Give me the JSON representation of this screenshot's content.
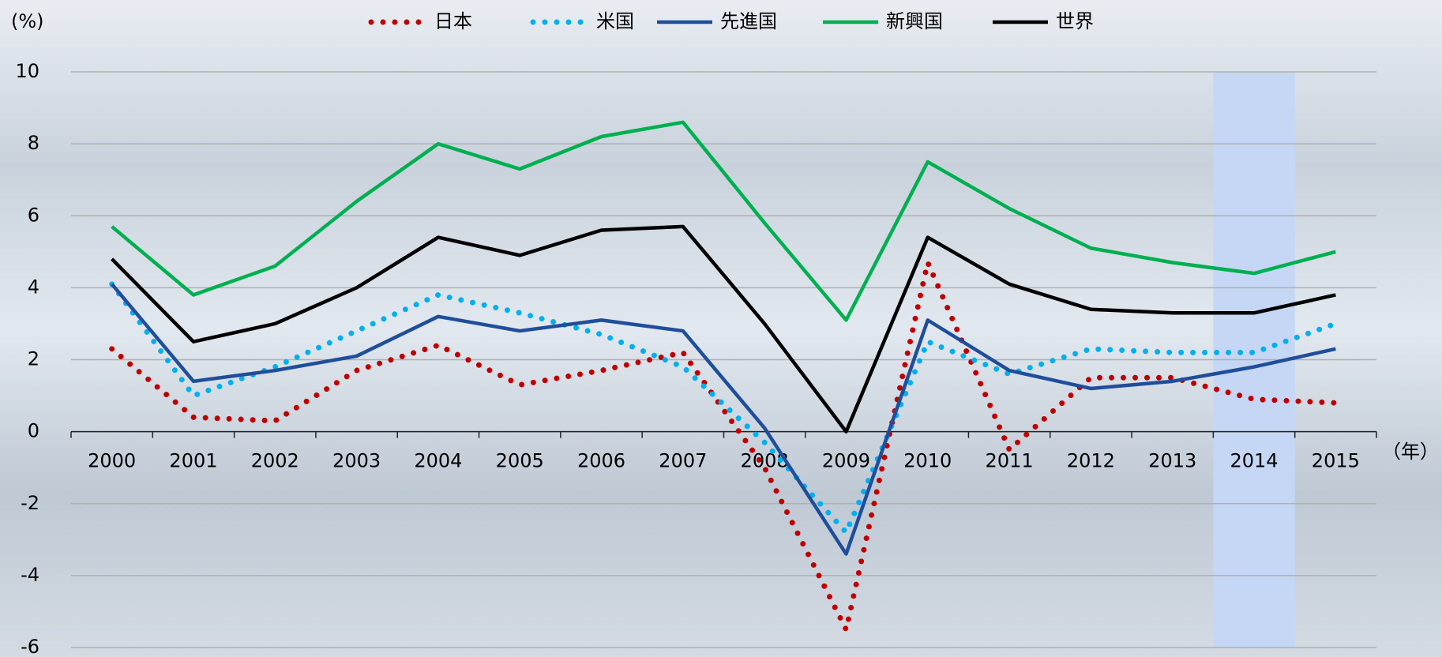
{
  "chart_data": {
    "type": "line",
    "y_label": "(%)",
    "x_label": "（年）",
    "categories": [
      "2000",
      "2001",
      "2002",
      "2003",
      "2004",
      "2005",
      "2006",
      "2007",
      "2008",
      "2009",
      "2010",
      "2011",
      "2012",
      "2013",
      "2014",
      "2015"
    ],
    "highlight": "2014",
    "series": [
      {
        "name": "日本",
        "color": "#c00000",
        "style": "dotted",
        "values": [
          2.3,
          0.4,
          0.3,
          1.7,
          2.4,
          1.3,
          1.7,
          2.2,
          -1.0,
          -5.5,
          4.7,
          -0.5,
          1.5,
          1.5,
          0.9,
          0.8
        ]
      },
      {
        "name": "米国",
        "color": "#00b0f0",
        "style": "dotted",
        "values": [
          4.1,
          1.0,
          1.8,
          2.8,
          3.8,
          3.3,
          2.7,
          1.8,
          -0.3,
          -2.8,
          2.5,
          1.6,
          2.3,
          2.2,
          2.2,
          3.0
        ]
      },
      {
        "name": "先進国",
        "color": "#1f4e9a",
        "style": "solid",
        "values": [
          4.1,
          1.4,
          1.7,
          2.1,
          3.2,
          2.8,
          3.1,
          2.8,
          0.1,
          -3.4,
          3.1,
          1.7,
          1.2,
          1.4,
          1.8,
          2.3
        ]
      },
      {
        "name": "新興国",
        "color": "#00b050",
        "style": "solid",
        "values": [
          5.7,
          3.8,
          4.6,
          6.4,
          8.0,
          7.3,
          8.2,
          8.6,
          5.8,
          3.1,
          7.5,
          6.2,
          5.1,
          4.7,
          4.4,
          5.0
        ]
      },
      {
        "name": "世界",
        "color": "#000000",
        "style": "solid",
        "values": [
          4.8,
          2.5,
          3.0,
          4.0,
          5.4,
          4.9,
          5.6,
          5.7,
          3.0,
          0.0,
          5.4,
          4.1,
          3.4,
          3.3,
          3.3,
          3.8
        ]
      }
    ],
    "ylim": [
      -6,
      10
    ],
    "yticks": [
      -6,
      -4,
      -2,
      0,
      2,
      4,
      6,
      8,
      10
    ],
    "grid": true
  }
}
